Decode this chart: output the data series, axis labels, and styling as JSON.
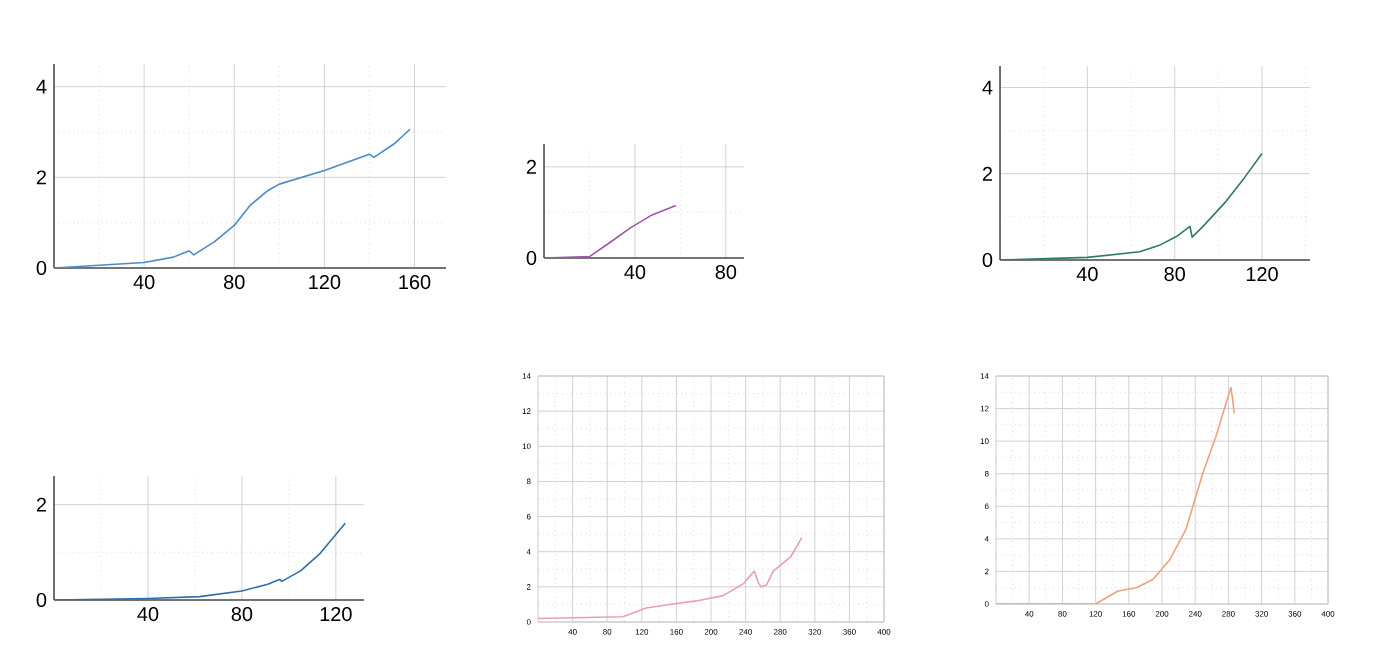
{
  "chart_data": [
    {
      "type": "line",
      "x": [
        0,
        20,
        40,
        53,
        60,
        62,
        71,
        80,
        87,
        95,
        100,
        120,
        136,
        140,
        142,
        151,
        158
      ],
      "values": [
        0,
        0.06,
        0.12,
        0.24,
        0.38,
        0.29,
        0.57,
        0.94,
        1.38,
        1.71,
        1.85,
        2.15,
        2.44,
        2.51,
        2.44,
        2.74,
        3.06
      ],
      "color": "#4a8cc8",
      "xlim": [
        0,
        174
      ],
      "ylim": [
        0,
        4.5
      ],
      "xticks": [
        {
          "value": 20,
          "label": null
        },
        40,
        {
          "value": 60,
          "label": null
        },
        80,
        {
          "value": 100,
          "label": null
        },
        120,
        {
          "value": 140,
          "label": null
        },
        160
      ],
      "yticks": [
        0,
        {
          "value": 1,
          "label": null
        },
        2,
        {
          "value": 3,
          "label": null
        },
        4
      ],
      "grid": true
    },
    {
      "type": "line",
      "x": [
        0,
        20,
        29,
        38,
        47,
        58
      ],
      "values": [
        0,
        0.03,
        0.34,
        0.66,
        0.93,
        1.15
      ],
      "color": "#9b59a8",
      "xlim": [
        0,
        88
      ],
      "ylim": [
        0,
        2.5
      ],
      "xticks": [
        {
          "value": 20,
          "label": null
        },
        40,
        {
          "value": 60,
          "label": null
        },
        80
      ],
      "yticks": [
        0,
        {
          "value": 1,
          "label": null
        },
        2
      ],
      "grid": true
    },
    {
      "type": "line",
      "x": [
        0,
        40,
        64,
        73,
        81,
        87,
        88,
        93,
        103,
        112,
        120
      ],
      "values": [
        0,
        0.06,
        0.19,
        0.34,
        0.55,
        0.78,
        0.53,
        0.78,
        1.33,
        1.91,
        2.47
      ],
      "color": "#2e7d5a",
      "xlim": [
        0,
        142
      ],
      "ylim": [
        0,
        4.5
      ],
      "xticks": [
        {
          "value": 20,
          "label": null
        },
        40,
        {
          "value": 60,
          "label": null
        },
        80,
        {
          "value": 100,
          "label": null
        },
        120,
        {
          "value": 140,
          "label": null
        }
      ],
      "yticks": [
        0,
        {
          "value": 1,
          "label": null
        },
        2,
        {
          "value": 3,
          "label": null
        },
        4
      ],
      "grid": true
    },
    {
      "type": "line",
      "x": [
        0,
        40,
        62,
        80,
        91,
        96,
        97,
        105,
        113,
        124
      ],
      "values": [
        0,
        0.03,
        0.07,
        0.19,
        0.33,
        0.43,
        0.39,
        0.61,
        0.96,
        1.61
      ],
      "color": "#2f6fa8",
      "xlim": [
        0,
        132
      ],
      "ylim": [
        0,
        2.6
      ],
      "xticks": [
        {
          "value": 20,
          "label": null
        },
        40,
        {
          "value": 60,
          "label": null
        },
        80,
        {
          "value": 100,
          "label": null
        },
        120
      ],
      "yticks": [
        0,
        {
          "value": 1,
          "label": null
        },
        2
      ],
      "grid": true
    },
    {
      "type": "line",
      "x": [
        0,
        98,
        125,
        152,
        183,
        214,
        238,
        250,
        255,
        258,
        264,
        272,
        292,
        305
      ],
      "values": [
        0.2,
        0.3,
        0.8,
        1,
        1.2,
        1.5,
        2.2,
        2.9,
        2.2,
        2,
        2.1,
        2.9,
        3.7,
        4.8
      ],
      "color": "#e8a0b0",
      "xlim": [
        0,
        400
      ],
      "ylim": [
        0,
        14
      ],
      "xticks": [
        {
          "value": 20,
          "label": null
        },
        40,
        {
          "value": 60,
          "label": null
        },
        80,
        {
          "value": 100,
          "label": null
        },
        120,
        {
          "value": 140,
          "label": null
        },
        160,
        {
          "value": 180,
          "label": null
        },
        200,
        {
          "value": 220,
          "label": null
        },
        240,
        {
          "value": 260,
          "label": null
        },
        280,
        {
          "value": 300,
          "label": null
        },
        320,
        {
          "value": 340,
          "label": null
        },
        360,
        {
          "value": 380,
          "label": null
        },
        400
      ],
      "yticks": [
        0,
        {
          "value": 1,
          "label": null
        },
        2,
        {
          "value": 3,
          "label": null
        },
        4,
        {
          "value": 5,
          "label": null
        },
        6,
        {
          "value": 7,
          "label": null
        },
        8,
        {
          "value": 9,
          "label": null
        },
        10,
        {
          "value": 11,
          "label": null
        },
        12,
        {
          "value": 13,
          "label": null
        },
        14
      ],
      "grid": true
    },
    {
      "type": "line",
      "x": [
        0,
        120,
        147,
        169,
        189,
        209,
        229,
        249,
        265,
        283,
        285,
        287
      ],
      "values": [
        0,
        0,
        0.8,
        1,
        1.5,
        2.7,
        4.6,
        8,
        10.3,
        13.3,
        12.6,
        11.7
      ],
      "color": "#f0a080",
      "xlim": [
        0,
        400
      ],
      "ylim": [
        0,
        14
      ],
      "xticks": [
        {
          "value": 20,
          "label": null
        },
        40,
        {
          "value": 60,
          "label": null
        },
        80,
        {
          "value": 100,
          "label": null
        },
        120,
        {
          "value": 140,
          "label": null
        },
        160,
        {
          "value": 180,
          "label": null
        },
        200,
        {
          "value": 220,
          "label": null
        },
        240,
        {
          "value": 260,
          "label": null
        },
        280,
        {
          "value": 300,
          "label": null
        },
        320,
        {
          "value": 340,
          "label": null
        },
        360,
        {
          "value": 380,
          "label": null
        },
        400
      ],
      "yticks": [
        0,
        {
          "value": 1,
          "label": null
        },
        2,
        {
          "value": 3,
          "label": null
        },
        4,
        {
          "value": 5,
          "label": null
        },
        6,
        {
          "value": 7,
          "label": null
        },
        8,
        {
          "value": 9,
          "label": null
        },
        10,
        {
          "value": 11,
          "label": null
        },
        12,
        {
          "value": 13,
          "label": null
        },
        14
      ],
      "grid": true
    }
  ]
}
